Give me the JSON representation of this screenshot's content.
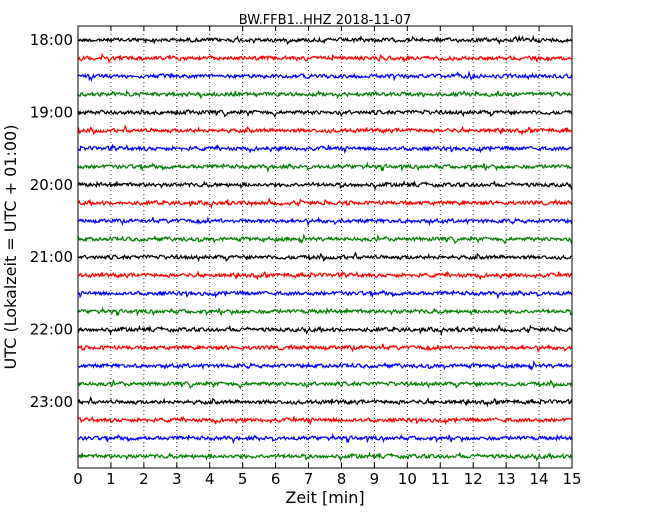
{
  "chart_data": {
    "type": "line",
    "title": "BW.FFB1..HHZ 2018-11-07",
    "xlabel": "Zeit  [min]",
    "ylabel": "UTC (Lokalzeit = UTC + 01:00)",
    "xlim": [
      0,
      15
    ],
    "x_ticks": [
      "0",
      "1",
      "2",
      "3",
      "4",
      "5",
      "6",
      "7",
      "8",
      "9",
      "10",
      "11",
      "12",
      "13",
      "14",
      "15"
    ],
    "y_tick_labels": [
      "18:00",
      "19:00",
      "20:00",
      "21:00",
      "22:00",
      "23:00"
    ],
    "grid": "vertical dotted lines at each minute",
    "trace_colors": [
      "#000000",
      "#ff0000",
      "#0000ff",
      "#007f00"
    ],
    "trace_count": 24,
    "trace_interval_min": 15,
    "first_trace": "18:00",
    "last_trace": "23:45"
  }
}
